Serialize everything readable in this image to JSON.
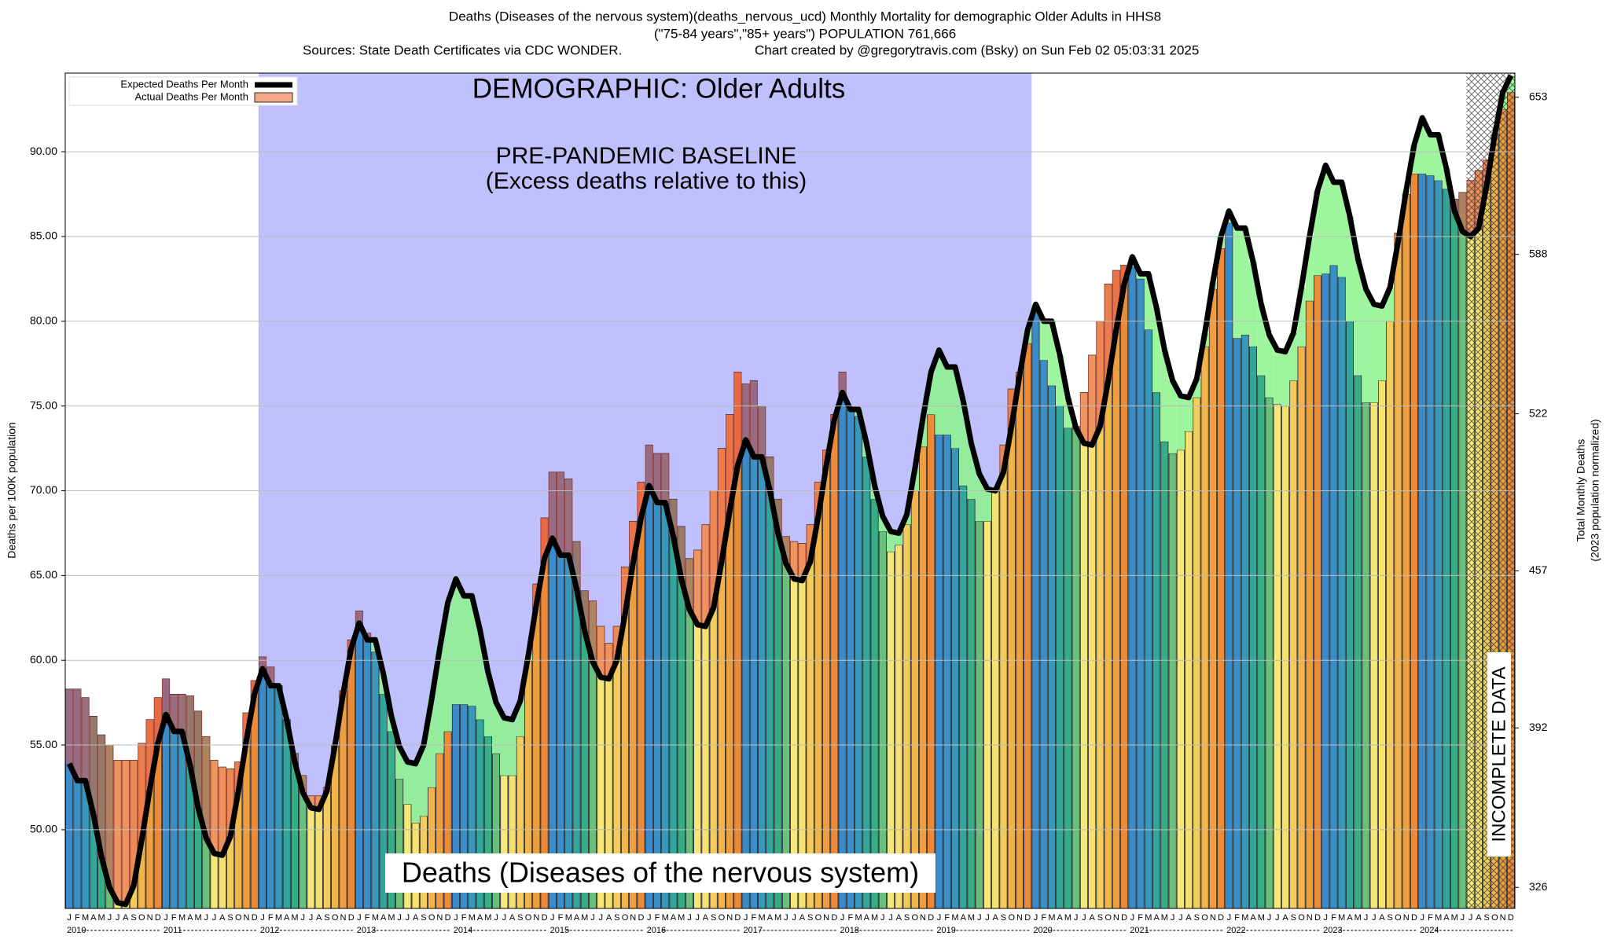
{
  "chart_data": {
    "type": "bar",
    "title": "Deaths (Diseases of the nervous system)(deaths_nervous_ucd) Monthly Mortality for demographic Older Adults in HHS8",
    "subtitle": "(\"75-84 years\",\"85+ years\") POPULATION 761,666",
    "source": "Sources: State Death Certificates via CDC WONDER.",
    "credit": "Chart created by @gregorytravis.com (Bsky) on Sun Feb 02 05:03:31 2025",
    "ylabel": "Deaths per 100K population",
    "y2label": [
      "Total Monthly Deaths",
      "(2023 population normalized)"
    ],
    "annotations": {
      "demographic": "DEMOGRAPHIC: Older Adults",
      "baseline": "PRE-PANDEMIC BASELINE",
      "baseline_note": "(Excess deaths relative to this)",
      "cause": "Deaths (Diseases of the nervous system)",
      "incomplete": "INCOMPLETE DATA"
    },
    "categories": [
      "J",
      "F",
      "M",
      "A",
      "M",
      "J",
      "J",
      "A",
      "S",
      "O",
      "N",
      "D",
      "J",
      "F",
      "M",
      "A",
      "M",
      "J",
      "J",
      "A",
      "S",
      "O",
      "N",
      "D",
      "J",
      "F",
      "M",
      "A",
      "M",
      "J",
      "J",
      "A",
      "S",
      "O",
      "N",
      "D",
      "J",
      "F",
      "M",
      "A",
      "M",
      "J",
      "J",
      "A",
      "S",
      "O",
      "N",
      "D",
      "J",
      "F",
      "M",
      "A",
      "M",
      "J",
      "J",
      "A",
      "S",
      "O",
      "N",
      "D",
      "J",
      "F",
      "M",
      "A",
      "M",
      "J",
      "J",
      "A",
      "S",
      "O",
      "N",
      "D",
      "J",
      "F",
      "M",
      "A",
      "M",
      "J",
      "J",
      "A",
      "S",
      "O",
      "N",
      "D",
      "J",
      "F",
      "M",
      "A",
      "M",
      "J",
      "J",
      "A",
      "S",
      "O",
      "N",
      "D",
      "J",
      "F",
      "M",
      "A",
      "M",
      "J",
      "J",
      "A",
      "S",
      "O",
      "N",
      "D",
      "J",
      "F",
      "M",
      "A",
      "M",
      "J",
      "J",
      "A",
      "S",
      "O",
      "N",
      "D",
      "J",
      "F",
      "M",
      "A",
      "M",
      "J",
      "J",
      "A",
      "S",
      "O",
      "N",
      "D",
      "J",
      "F",
      "M",
      "A",
      "M",
      "J",
      "J",
      "A",
      "S",
      "O",
      "N",
      "D",
      "J",
      "F",
      "M",
      "A",
      "M",
      "J",
      "J",
      "A",
      "S",
      "O",
      "N",
      "D",
      "J",
      "F",
      "M",
      "A",
      "M",
      "J",
      "J",
      "A",
      "S",
      "O",
      "N",
      "D",
      "J",
      "F",
      "M",
      "A",
      "M",
      "J",
      "J",
      "A",
      "S",
      "O",
      "N",
      "D"
    ],
    "years": [
      "2010",
      "2011",
      "2012",
      "2013",
      "2014",
      "2015",
      "2016",
      "2017",
      "2018",
      "2019",
      "2020",
      "2021",
      "2022",
      "2023",
      "2024"
    ],
    "month_colors": [
      "#3b8bcb",
      "#3a8fc6",
      "#3898bb",
      "#30a79a",
      "#35ad86",
      "#68c07a",
      "#f4e878",
      "#f6e070",
      "#f3cc5c",
      "#f0b44a",
      "#ee9e3e",
      "#ec8a38"
    ],
    "excess_colors": {
      "below": "#8cf58c",
      "above": "#e8504a"
    },
    "baseline_color": "#c0c0ff",
    "series": [
      {
        "name": "Expected Deaths Per Month",
        "color": "#000000",
        "values": [
          53.9,
          52.9,
          52.9,
          50.9,
          48.4,
          46.6,
          45.7,
          45.6,
          46.7,
          49.4,
          52.4,
          55.1,
          56.8,
          55.8,
          55.8,
          53.8,
          51.3,
          49.5,
          48.6,
          48.5,
          49.6,
          52.3,
          55.3,
          58.0,
          59.5,
          58.5,
          58.5,
          56.5,
          54.0,
          52.2,
          51.3,
          51.2,
          52.3,
          55.0,
          58.0,
          60.7,
          62.2,
          61.2,
          61.2,
          59.2,
          56.7,
          54.9,
          54.0,
          53.9,
          55.0,
          57.7,
          60.7,
          63.4,
          64.8,
          63.8,
          63.8,
          61.8,
          59.3,
          57.5,
          56.6,
          56.5,
          57.6,
          60.3,
          63.3,
          66.0,
          67.2,
          66.2,
          66.2,
          64.2,
          61.7,
          59.9,
          59.0,
          58.9,
          60.0,
          62.7,
          65.7,
          68.4,
          70.3,
          69.3,
          69.3,
          67.3,
          64.8,
          63.0,
          62.1,
          62.0,
          63.1,
          65.8,
          68.8,
          71.5,
          73.0,
          72.0,
          72.0,
          70.0,
          67.5,
          65.7,
          64.8,
          64.7,
          65.8,
          68.5,
          71.5,
          74.2,
          75.8,
          74.8,
          74.8,
          72.8,
          70.3,
          68.5,
          67.6,
          67.5,
          68.6,
          71.3,
          74.3,
          77.0,
          78.3,
          77.3,
          77.3,
          75.3,
          72.8,
          71.0,
          70.1,
          70.0,
          71.1,
          73.8,
          76.8,
          79.5,
          81.0,
          80.0,
          80.0,
          78.0,
          75.5,
          73.7,
          72.8,
          72.7,
          73.8,
          76.5,
          79.5,
          82.2,
          83.8,
          82.8,
          82.8,
          80.8,
          78.3,
          76.5,
          75.6,
          75.5,
          76.6,
          79.3,
          82.3,
          85.0,
          86.5,
          85.5,
          85.5,
          83.5,
          81.0,
          79.2,
          78.3,
          78.2,
          79.3,
          82.0,
          85.0,
          87.7,
          89.2,
          88.2,
          88.2,
          86.2,
          83.7,
          81.9,
          81.0,
          80.9,
          82.0,
          84.7,
          87.7,
          90.4,
          92.0,
          91.0,
          91.0,
          89.0,
          86.5,
          85.3,
          85.0,
          85.5,
          88.0,
          91.0,
          93.5,
          94.5
        ]
      },
      {
        "name": "Actual Deaths Per Month",
        "color": "#f4a88c",
        "values": [
          58.3,
          58.3,
          57.8,
          56.7,
          55.6,
          55.0,
          54.1,
          54.1,
          54.1,
          55.1,
          56.5,
          57.8,
          58.9,
          58.0,
          58.0,
          57.9,
          57.0,
          55.5,
          54.1,
          53.7,
          53.6,
          54.0,
          56.9,
          58.8,
          60.2,
          59.6,
          58.5,
          56.5,
          54.5,
          53.2,
          52.0,
          52.0,
          52.5,
          55.0,
          58.2,
          61.2,
          62.9,
          61.6,
          60.5,
          58.0,
          55.8,
          53.0,
          51.5,
          50.4,
          50.8,
          52.5,
          54.5,
          55.8,
          57.4,
          57.4,
          57.3,
          56.5,
          55.5,
          54.5,
          53.2,
          53.2,
          55.5,
          60.0,
          64.5,
          68.4,
          71.1,
          71.1,
          70.7,
          67.0,
          64.1,
          63.5,
          62.0,
          61.0,
          62.0,
          65.5,
          68.2,
          70.5,
          72.7,
          72.2,
          72.2,
          69.5,
          67.9,
          66.0,
          66.5,
          68.0,
          70.0,
          72.5,
          74.5,
          77.0,
          76.3,
          76.5,
          75.0,
          72.0,
          69.5,
          67.3,
          67.0,
          66.9,
          68.0,
          70.5,
          72.4,
          74.5,
          77.0,
          74.8,
          74.4,
          72.0,
          69.5,
          67.6,
          66.4,
          66.8,
          68.0,
          70.0,
          72.6,
          74.5,
          73.3,
          73.3,
          72.5,
          70.3,
          69.5,
          68.2,
          68.2,
          70.0,
          72.7,
          76.0,
          77.0,
          78.7,
          80.5,
          77.7,
          76.2,
          75.0,
          73.7,
          73.8,
          75.8,
          78.0,
          80.0,
          82.2,
          83.0,
          83.3,
          83.2,
          82.5,
          79.5,
          75.8,
          72.9,
          72.2,
          72.4,
          73.5,
          75.5,
          78.5,
          81.9,
          84.3,
          85.8,
          79.0,
          79.2,
          78.5,
          76.8,
          75.5,
          75.1,
          75.0,
          76.5,
          78.5,
          81.2,
          82.7,
          82.8,
          83.3,
          82.6,
          80.0,
          76.8,
          75.2,
          75.2,
          76.5,
          80.0,
          85.2,
          87.5,
          88.7,
          88.7,
          88.6,
          88.3,
          87.8,
          87.2,
          87.6,
          88.3,
          88.9,
          89.5,
          91.0,
          92.5,
          93.5
        ]
      }
    ],
    "incomplete_months": 6,
    "ylim": [
      45.36,
      94.64
    ],
    "yticks": [
      {
        "value": 50,
        "label": "50.00"
      },
      {
        "value": 55,
        "label": "55.00"
      },
      {
        "value": 60,
        "label": "60.00"
      },
      {
        "value": 65,
        "label": "65.00"
      },
      {
        "value": 70,
        "label": "70.00"
      },
      {
        "value": 75,
        "label": "75.00"
      },
      {
        "value": 80,
        "label": "80.00"
      },
      {
        "value": 85,
        "label": "85.00"
      },
      {
        "value": 90,
        "label": "90.00"
      }
    ],
    "y2lim": [
      317.3,
      663
    ],
    "y2ticks": [
      326,
      392,
      457,
      522,
      588,
      653
    ],
    "grid": true
  }
}
